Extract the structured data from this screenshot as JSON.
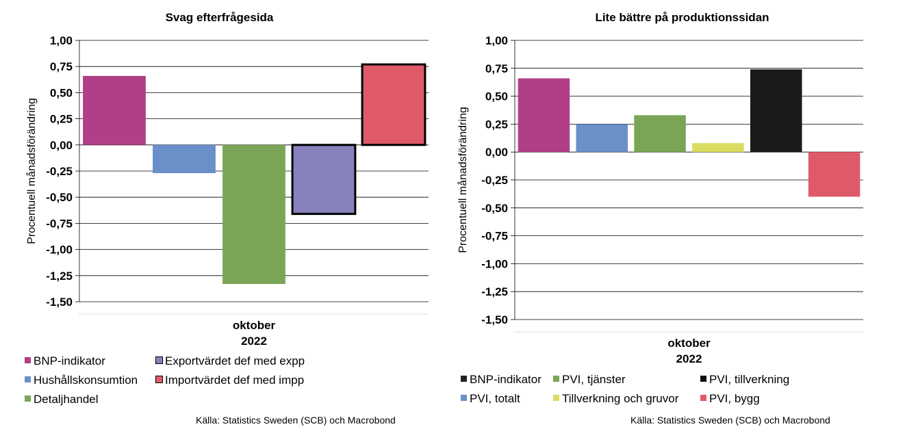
{
  "chart_data": [
    {
      "type": "bar",
      "title": "Svag efterfrågesida",
      "ylabel": "Procentuell månadsförändring",
      "xlabel": "oktober\n2022",
      "category_line1": "oktober",
      "category_line2": "2022",
      "ylim": [
        -1.5,
        1.0
      ],
      "ytick_step": 0.25,
      "yticks": [
        "1,00",
        "0,75",
        "0,50",
        "0,25",
        "0,00",
        "-0,25",
        "-0,50",
        "-0,75",
        "-1,00",
        "-1,25",
        "-1,50"
      ],
      "grid": true,
      "legend_position": "bottom",
      "series": [
        {
          "name": "BNP-indikator",
          "value": 0.66,
          "color": "#b13f87",
          "outlined": false
        },
        {
          "name": "Hushållskonsumtion",
          "value": -0.27,
          "color": "#6a8fc9",
          "outlined": false
        },
        {
          "name": "Detaljhandel",
          "value": -1.33,
          "color": "#7aa556",
          "outlined": false
        },
        {
          "name": "Exportvärdet def med expp",
          "value": -0.66,
          "color": "#8782bb",
          "outlined": true
        },
        {
          "name": "Importvärdet def med impp",
          "value": 0.77,
          "color": "#df5a68",
          "outlined": true
        }
      ],
      "source": "Källa: Statistics Sweden (SCB) och Macrobond"
    },
    {
      "type": "bar",
      "title": "Lite bättre på produktionssidan",
      "ylabel": "Procentuell månadsförändring",
      "xlabel": "oktober\n2022",
      "category_line1": "oktober",
      "category_line2": "2022",
      "ylim": [
        -1.5,
        1.0
      ],
      "ytick_step": 0.25,
      "yticks": [
        "1,00",
        "0,75",
        "0,50",
        "0,25",
        "0,00",
        "-0,25",
        "-0,50",
        "-0,75",
        "-1,00",
        "-1,25",
        "-1,50"
      ],
      "grid": true,
      "legend_position": "bottom",
      "series": [
        {
          "name": "BNP-indikator",
          "value": 0.66,
          "color": "#b13f87",
          "legend_color": "#222222"
        },
        {
          "name": "PVI, totalt",
          "value": 0.25,
          "color": "#6a8fc9",
          "legend_color": "#6a8fc9"
        },
        {
          "name": "PVI, tjänster",
          "value": 0.33,
          "color": "#7aa556",
          "legend_color": "#7aa556"
        },
        {
          "name": "Tillverkning och gruvor",
          "value": 0.08,
          "color": "#d9dc5e",
          "legend_color": "#d9dc5e"
        },
        {
          "name": "PVI, tillverkning",
          "value": 0.74,
          "color": "#1a1a1a",
          "legend_color": "#111111"
        },
        {
          "name": "PVI, bygg",
          "value": -0.4,
          "color": "#df5a68",
          "legend_color": "#df5a68"
        }
      ],
      "source": "Källa: Statistics Sweden (SCB) och Macrobond"
    }
  ]
}
